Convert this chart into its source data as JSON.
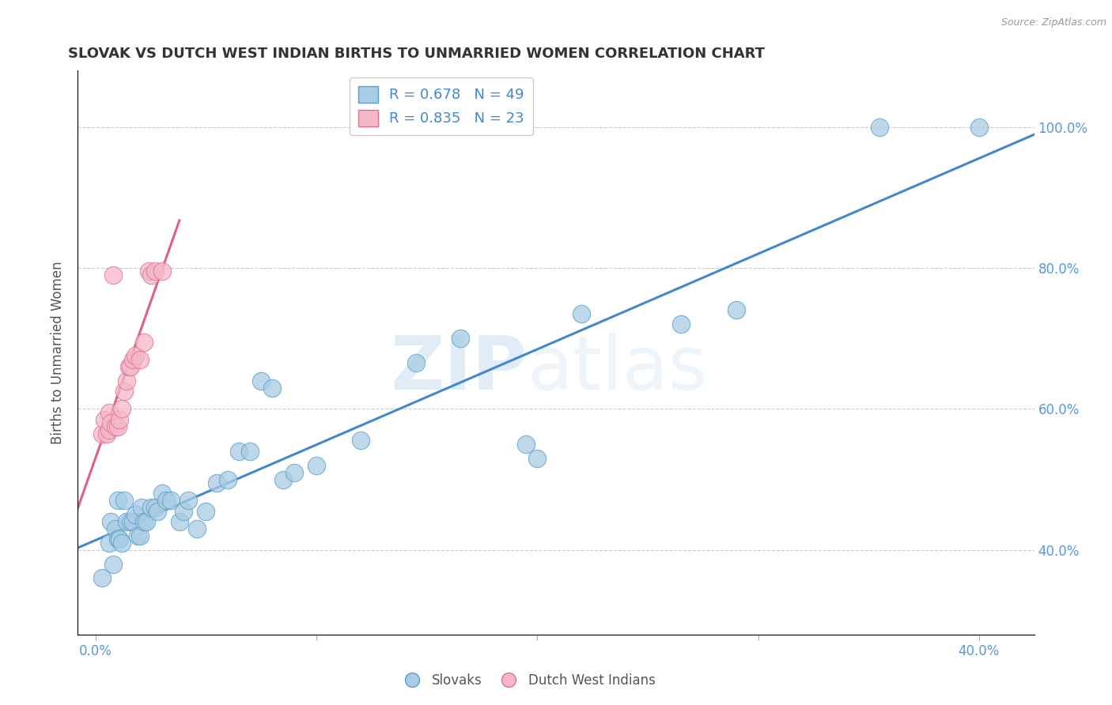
{
  "title": "SLOVAK VS DUTCH WEST INDIAN BIRTHS TO UNMARRIED WOMEN CORRELATION CHART",
  "source": "Source: ZipAtlas.com",
  "ylabel": "Births to Unmarried Women",
  "xlim": [
    -0.008,
    0.425
  ],
  "ylim": [
    0.28,
    1.08
  ],
  "x_ticks": [
    0.0,
    0.1,
    0.2,
    0.3,
    0.4
  ],
  "x_tick_labels": [
    "0.0%",
    "",
    "",
    "",
    "40.0%"
  ],
  "y_ticks_right": [
    0.4,
    0.6,
    0.8,
    1.0
  ],
  "y_tick_labels_right": [
    "40.0%",
    "60.0%",
    "80.0%",
    "100.0%"
  ],
  "watermark_zip": "ZIP",
  "watermark_atlas": "atlas",
  "legend_label_blue": "R = 0.678   N = 49",
  "legend_label_pink": "R = 0.835   N = 23",
  "blue_fill": "#a8cce4",
  "pink_fill": "#f4b8c8",
  "blue_edge": "#5b9ec9",
  "pink_edge": "#e07090",
  "blue_line": "#4488cc",
  "pink_line": "#e06080",
  "text_color": "#333333",
  "axis_label_color": "#555555",
  "tick_color": "#5599dd",
  "grid_color": "#cccccc",
  "legend_text_color": "#4488cc",
  "slovaks_x": [
    0.003,
    0.006,
    0.007,
    0.008,
    0.009,
    0.01,
    0.01,
    0.011,
    0.012,
    0.013,
    0.014,
    0.016,
    0.017,
    0.018,
    0.019,
    0.02,
    0.021,
    0.022,
    0.023,
    0.025,
    0.027,
    0.028,
    0.03,
    0.032,
    0.034,
    0.038,
    0.04,
    0.042,
    0.046,
    0.05,
    0.055,
    0.06,
    0.065,
    0.07,
    0.075,
    0.08,
    0.085,
    0.09,
    0.1,
    0.12,
    0.145,
    0.165,
    0.195,
    0.2,
    0.22,
    0.265,
    0.29,
    0.355,
    0.4
  ],
  "slovaks_y": [
    0.36,
    0.41,
    0.44,
    0.38,
    0.43,
    0.47,
    0.415,
    0.415,
    0.41,
    0.47,
    0.44,
    0.44,
    0.44,
    0.45,
    0.42,
    0.42,
    0.46,
    0.44,
    0.44,
    0.46,
    0.46,
    0.455,
    0.48,
    0.47,
    0.47,
    0.44,
    0.455,
    0.47,
    0.43,
    0.455,
    0.495,
    0.5,
    0.54,
    0.54,
    0.64,
    0.63,
    0.5,
    0.51,
    0.52,
    0.555,
    0.665,
    0.7,
    0.55,
    0.53,
    0.735,
    0.72,
    0.74,
    1.0,
    1.0
  ],
  "dutch_x": [
    0.003,
    0.004,
    0.005,
    0.006,
    0.006,
    0.007,
    0.008,
    0.009,
    0.01,
    0.011,
    0.012,
    0.013,
    0.014,
    0.015,
    0.016,
    0.017,
    0.018,
    0.02,
    0.022,
    0.024,
    0.025,
    0.027,
    0.03
  ],
  "dutch_y": [
    0.565,
    0.585,
    0.565,
    0.57,
    0.595,
    0.58,
    0.79,
    0.575,
    0.575,
    0.585,
    0.6,
    0.625,
    0.64,
    0.66,
    0.66,
    0.67,
    0.675,
    0.67,
    0.695,
    0.795,
    0.79,
    0.795,
    0.795
  ],
  "blue_line_x0": -0.008,
  "blue_line_x1": 0.425,
  "pink_line_x0": -0.008,
  "pink_line_x1": 0.038
}
